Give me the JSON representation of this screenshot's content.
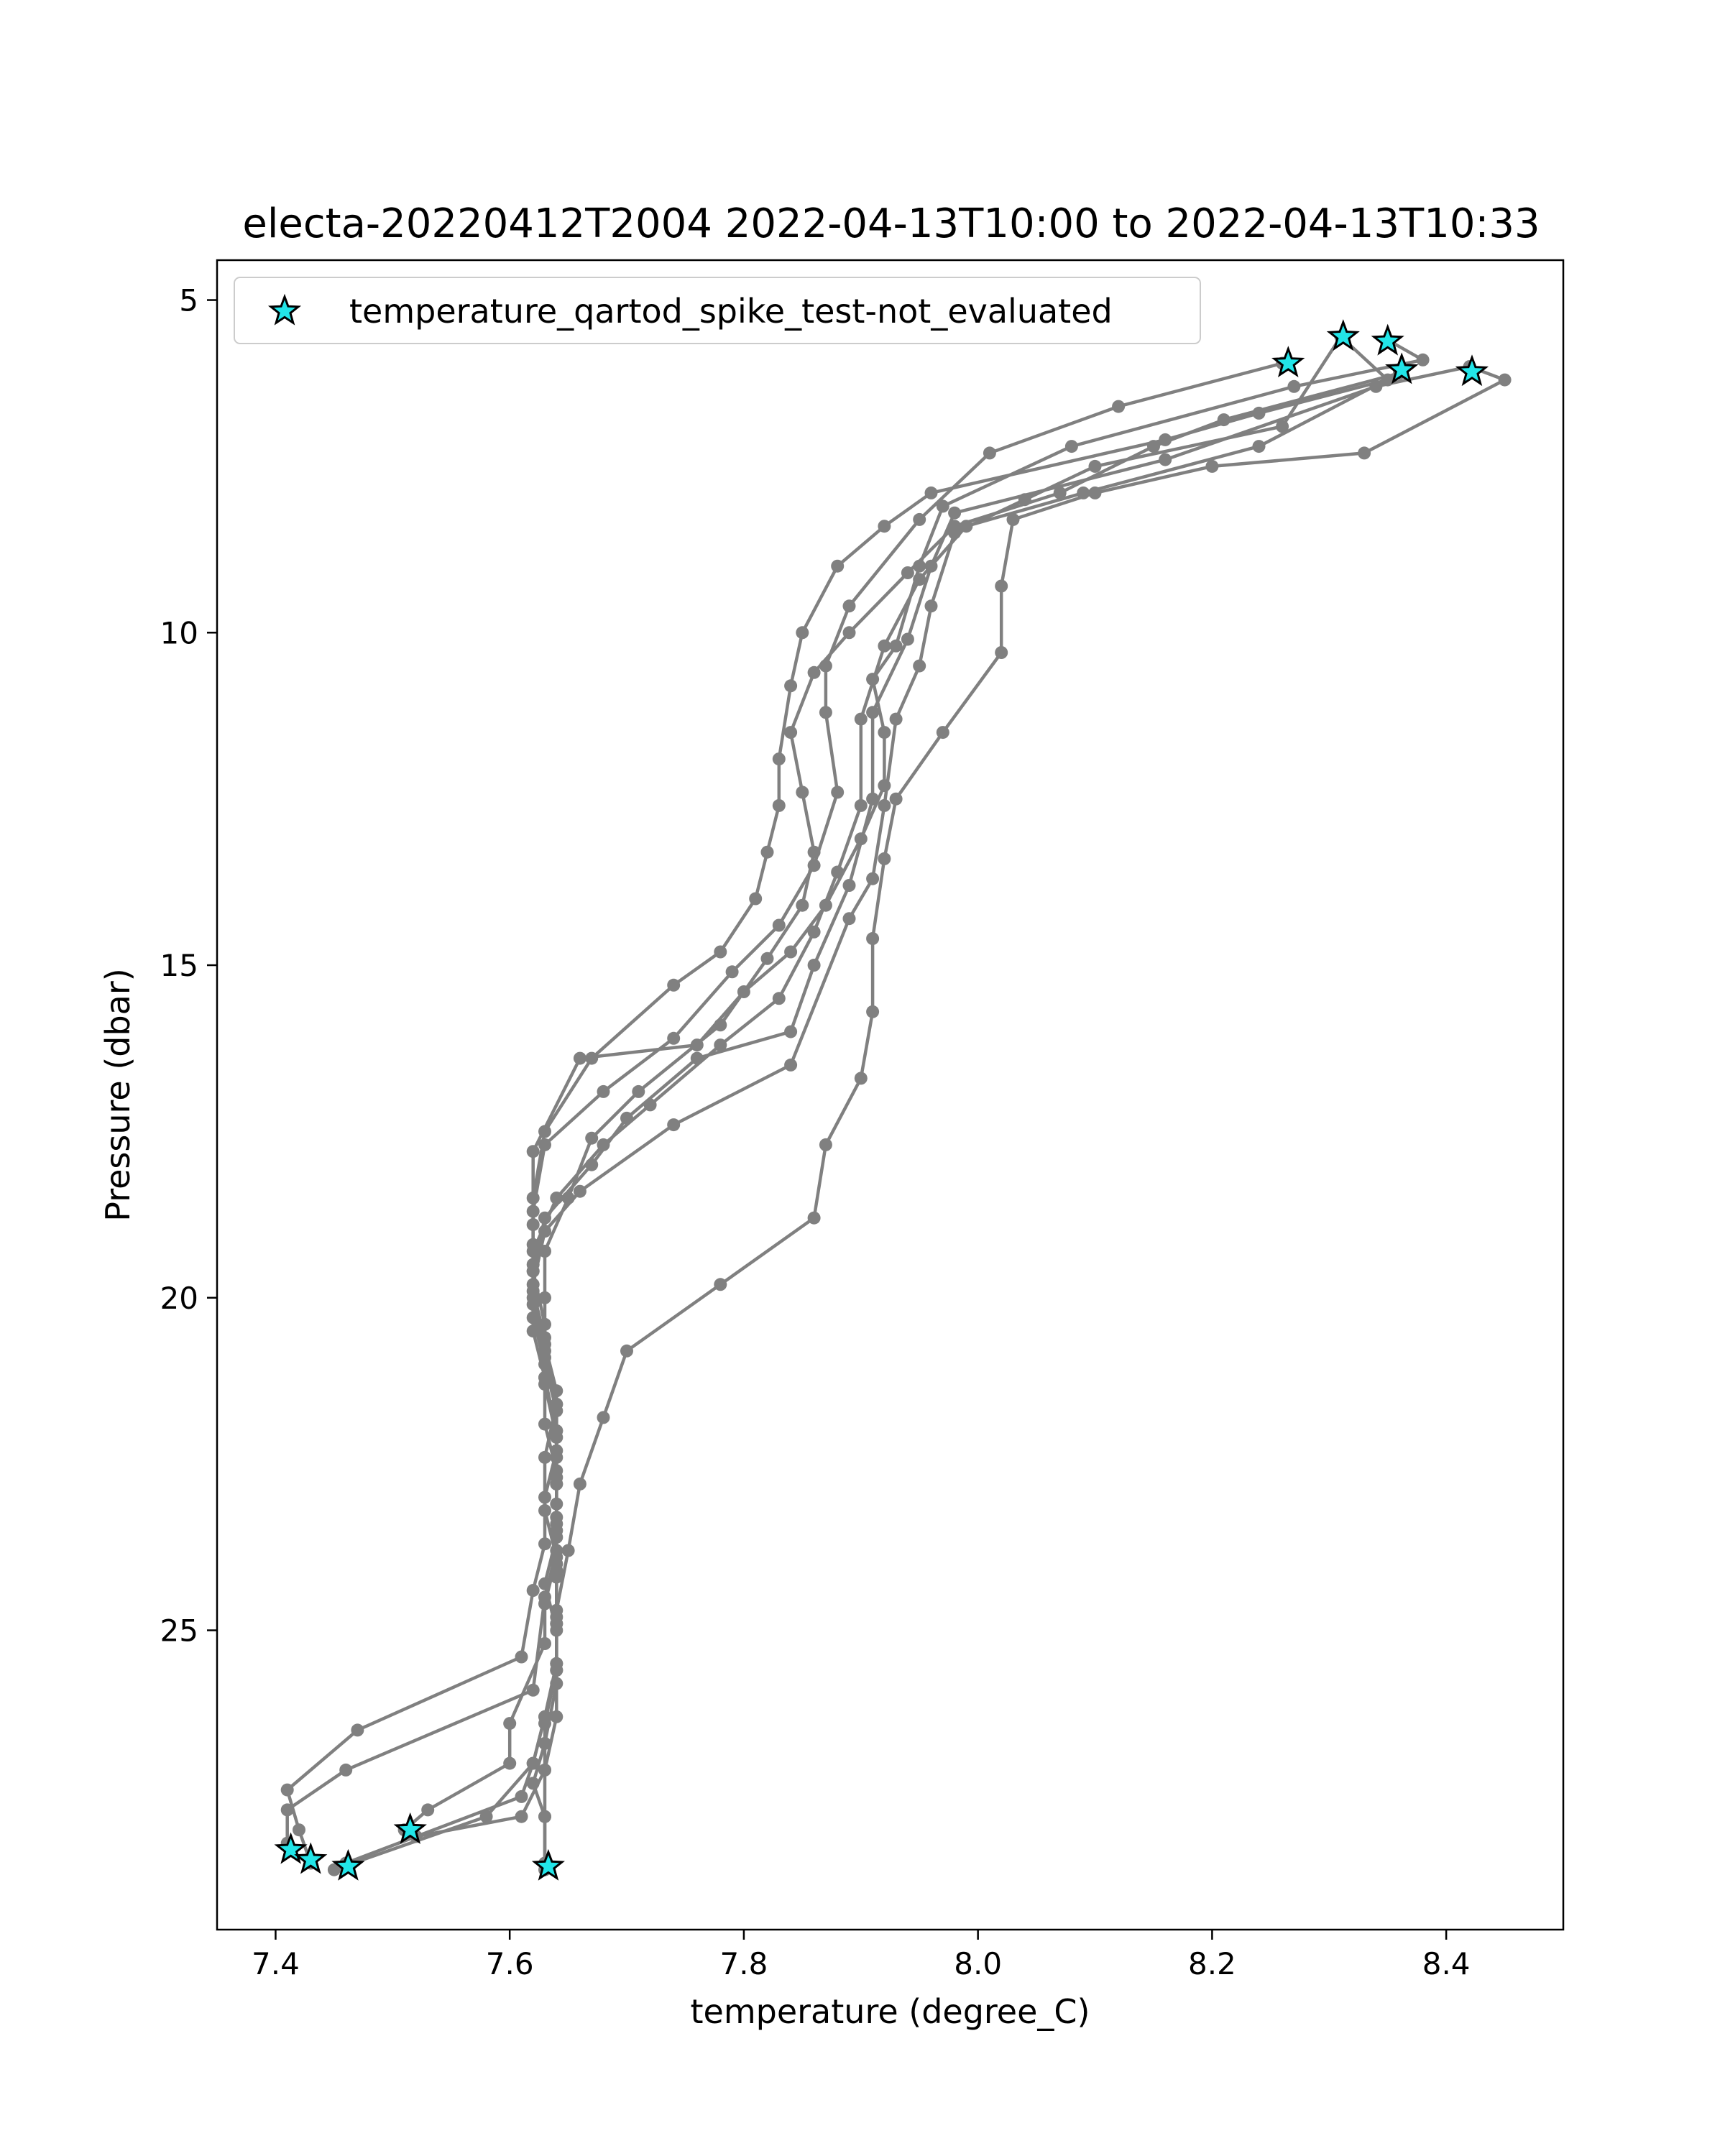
{
  "chart_data": {
    "type": "line",
    "title": "electa-20220412T2004 2022-04-13T10:00 to 2022-04-13T10:33",
    "xlabel": "temperature (degree_C)",
    "ylabel": "Pressure (dbar)",
    "xlim": [
      7.35,
      8.5
    ],
    "ylim": [
      29.5,
      4.4
    ],
    "y_inverted": true,
    "grid": false,
    "legend_position": "upper-left",
    "xticks": [
      7.4,
      7.6,
      7.8,
      8.0,
      8.2,
      8.4
    ],
    "xtick_labels": [
      "7.4",
      "7.6",
      "7.8",
      "8.0",
      "8.2",
      "8.4"
    ],
    "yticks": [
      5,
      10,
      15,
      20,
      25
    ],
    "ytick_labels": [
      "5",
      "10",
      "15",
      "20",
      "25"
    ],
    "line_color": "#808080",
    "marker_color": "#22e5e8",
    "legend": [
      {
        "label": "temperature_qartod_spike_test-not_evaluated",
        "marker": "star",
        "color": "#22e5e8"
      }
    ],
    "series": [
      {
        "values": [
          [
            8.31,
            5.55
          ],
          [
            8.35,
            6.2
          ],
          [
            8.24,
            6.7
          ],
          [
            8.16,
            7.1
          ],
          [
            7.96,
            7.9
          ],
          [
            7.92,
            8.4
          ],
          [
            7.88,
            9.0
          ],
          [
            7.85,
            10.0
          ],
          [
            7.84,
            10.8
          ],
          [
            7.83,
            11.9
          ],
          [
            7.83,
            12.6
          ],
          [
            7.82,
            13.3
          ],
          [
            7.81,
            14.0
          ],
          [
            7.78,
            14.8
          ],
          [
            7.74,
            15.3
          ],
          [
            7.67,
            16.4
          ],
          [
            7.63,
            17.5
          ],
          [
            7.62,
            18.5
          ],
          [
            7.62,
            19.2
          ],
          [
            7.62,
            20.0
          ],
          [
            7.63,
            20.8
          ],
          [
            7.64,
            21.6
          ],
          [
            7.64,
            22.3
          ],
          [
            7.63,
            23.0
          ],
          [
            7.63,
            23.7
          ],
          [
            7.62,
            24.4
          ],
          [
            7.61,
            25.4
          ],
          [
            7.47,
            26.5
          ],
          [
            7.41,
            27.4
          ],
          [
            7.42,
            28.0
          ],
          [
            7.43,
            28.5
          ]
        ]
      },
      {
        "values": [
          [
            8.35,
            5.6
          ],
          [
            8.38,
            5.9
          ],
          [
            8.27,
            6.3
          ],
          [
            8.08,
            7.2
          ],
          [
            7.97,
            8.1
          ],
          [
            7.95,
            9.0
          ],
          [
            7.93,
            10.2
          ],
          [
            7.91,
            10.7
          ],
          [
            7.92,
            11.5
          ],
          [
            7.92,
            12.3
          ],
          [
            7.9,
            13.1
          ],
          [
            7.87,
            14.1
          ],
          [
            7.84,
            14.8
          ],
          [
            7.8,
            15.4
          ],
          [
            7.76,
            16.2
          ],
          [
            7.66,
            16.4
          ],
          [
            7.62,
            17.8
          ],
          [
            7.62,
            18.9
          ],
          [
            7.62,
            19.6
          ],
          [
            7.62,
            20.3
          ],
          [
            7.63,
            21.0
          ],
          [
            7.64,
            21.7
          ],
          [
            7.64,
            22.4
          ],
          [
            7.64,
            23.1
          ],
          [
            7.64,
            23.8
          ],
          [
            7.63,
            24.5
          ],
          [
            7.62,
            25.9
          ],
          [
            7.46,
            27.1
          ],
          [
            7.41,
            27.7
          ],
          [
            7.41,
            28.2
          ]
        ]
      },
      {
        "values": [
          [
            8.26,
            5.95
          ],
          [
            8.12,
            6.6
          ],
          [
            8.01,
            7.3
          ],
          [
            7.95,
            8.3
          ],
          [
            7.89,
            9.6
          ],
          [
            7.87,
            10.5
          ],
          [
            7.87,
            11.2
          ],
          [
            7.88,
            12.4
          ],
          [
            7.86,
            13.5
          ],
          [
            7.83,
            14.4
          ],
          [
            7.79,
            15.1
          ],
          [
            7.74,
            16.1
          ],
          [
            7.68,
            16.9
          ],
          [
            7.63,
            17.7
          ],
          [
            7.62,
            18.7
          ],
          [
            7.62,
            19.5
          ],
          [
            7.62,
            20.1
          ],
          [
            7.63,
            20.9
          ],
          [
            7.64,
            21.6
          ],
          [
            7.63,
            22.4
          ],
          [
            7.63,
            23.2
          ],
          [
            7.64,
            23.9
          ],
          [
            7.63,
            24.6
          ],
          [
            7.63,
            25.2
          ],
          [
            7.6,
            26.4
          ],
          [
            7.6,
            27.0
          ],
          [
            7.53,
            27.7
          ],
          [
            7.51,
            28.0
          ]
        ]
      },
      {
        "values": [
          [
            8.36,
            6.1
          ],
          [
            8.21,
            6.8
          ],
          [
            8.15,
            7.2
          ],
          [
            8.07,
            7.9
          ],
          [
            7.98,
            8.4
          ],
          [
            7.94,
            9.1
          ],
          [
            7.89,
            10.0
          ],
          [
            7.86,
            10.6
          ],
          [
            7.84,
            11.5
          ],
          [
            7.85,
            12.4
          ],
          [
            7.86,
            13.3
          ],
          [
            7.85,
            14.1
          ],
          [
            7.82,
            14.9
          ],
          [
            7.78,
            15.9
          ],
          [
            7.71,
            16.9
          ],
          [
            7.67,
            17.6
          ],
          [
            7.65,
            18.5
          ],
          [
            7.63,
            19.3
          ],
          [
            7.63,
            20.0
          ],
          [
            7.63,
            20.7
          ],
          [
            7.64,
            21.4
          ],
          [
            7.64,
            22.0
          ],
          [
            7.64,
            22.8
          ],
          [
            7.64,
            23.5
          ],
          [
            7.64,
            24.2
          ],
          [
            7.64,
            24.9
          ],
          [
            7.64,
            25.6
          ],
          [
            7.63,
            26.3
          ],
          [
            7.62,
            27.0
          ],
          [
            7.61,
            27.5
          ],
          [
            7.46,
            28.5
          ]
        ]
      },
      {
        "values": [
          [
            8.36,
            6.1
          ],
          [
            8.24,
            7.2
          ],
          [
            8.09,
            7.9
          ],
          [
            7.99,
            8.4
          ],
          [
            7.95,
            9.2
          ],
          [
            7.92,
            10.2
          ],
          [
            7.9,
            11.3
          ],
          [
            7.9,
            12.6
          ],
          [
            7.88,
            13.6
          ],
          [
            7.86,
            14.5
          ],
          [
            7.83,
            15.5
          ],
          [
            7.78,
            16.2
          ],
          [
            7.72,
            17.1
          ],
          [
            7.68,
            17.7
          ],
          [
            7.64,
            18.5
          ],
          [
            7.62,
            19.3
          ],
          [
            7.62,
            19.9
          ],
          [
            7.63,
            20.6
          ],
          [
            7.63,
            21.3
          ],
          [
            7.64,
            22.1
          ],
          [
            7.64,
            22.8
          ],
          [
            7.64,
            23.6
          ],
          [
            7.63,
            24.3
          ],
          [
            7.64,
            25.0
          ],
          [
            7.64,
            25.8
          ],
          [
            7.63,
            26.7
          ],
          [
            7.62,
            27.3
          ],
          [
            7.63,
            27.8
          ],
          [
            7.63,
            28.5
          ]
        ]
      },
      {
        "values": [
          [
            8.42,
            6.0
          ],
          [
            8.45,
            6.2
          ],
          [
            8.33,
            7.3
          ],
          [
            8.2,
            7.5
          ],
          [
            8.1,
            7.9
          ],
          [
            8.03,
            8.3
          ],
          [
            8.02,
            9.3
          ],
          [
            8.02,
            10.3
          ],
          [
            7.97,
            11.5
          ],
          [
            7.93,
            12.5
          ],
          [
            7.92,
            13.4
          ],
          [
            7.91,
            14.6
          ],
          [
            7.91,
            15.7
          ],
          [
            7.9,
            16.7
          ],
          [
            7.87,
            17.7
          ],
          [
            7.86,
            18.8
          ],
          [
            7.78,
            19.8
          ],
          [
            7.7,
            20.8
          ],
          [
            7.68,
            21.8
          ],
          [
            7.66,
            22.8
          ],
          [
            7.65,
            23.8
          ],
          [
            7.64,
            24.7
          ],
          [
            7.64,
            25.5
          ],
          [
            7.64,
            26.3
          ],
          [
            7.63,
            27.1
          ],
          [
            7.63,
            27.8
          ],
          [
            7.63,
            28.6
          ]
        ]
      },
      {
        "values": [
          [
            8.42,
            6.0
          ],
          [
            8.34,
            6.3
          ],
          [
            8.16,
            7.4
          ],
          [
            7.98,
            8.2
          ],
          [
            7.96,
            9.0
          ],
          [
            7.94,
            10.1
          ],
          [
            7.91,
            11.2
          ],
          [
            7.91,
            12.5
          ],
          [
            7.89,
            13.8
          ],
          [
            7.86,
            15.0
          ],
          [
            7.84,
            16.0
          ],
          [
            7.76,
            16.4
          ],
          [
            7.7,
            17.3
          ],
          [
            7.67,
            18.0
          ],
          [
            7.63,
            18.8
          ],
          [
            7.62,
            19.6
          ],
          [
            7.63,
            20.4
          ],
          [
            7.63,
            21.2
          ],
          [
            7.64,
            22.0
          ],
          [
            7.64,
            22.7
          ],
          [
            7.64,
            23.4
          ],
          [
            7.64,
            24.1
          ],
          [
            7.64,
            24.9
          ],
          [
            7.64,
            25.6
          ],
          [
            7.63,
            26.4
          ],
          [
            7.63,
            27.1
          ],
          [
            7.61,
            27.8
          ],
          [
            7.52,
            28.1
          ]
        ]
      },
      {
        "values": [
          [
            8.31,
            5.55
          ],
          [
            8.26,
            6.9
          ],
          [
            8.1,
            7.5
          ],
          [
            8.04,
            8.0
          ],
          [
            7.98,
            8.5
          ],
          [
            7.96,
            9.6
          ],
          [
            7.95,
            10.5
          ],
          [
            7.93,
            11.3
          ],
          [
            7.92,
            12.6
          ],
          [
            7.91,
            13.7
          ],
          [
            7.89,
            14.3
          ],
          [
            7.84,
            16.5
          ],
          [
            7.74,
            17.4
          ],
          [
            7.66,
            18.4
          ],
          [
            7.63,
            19.0
          ],
          [
            7.62,
            19.8
          ],
          [
            7.62,
            20.5
          ],
          [
            7.63,
            21.2
          ],
          [
            7.63,
            21.9
          ],
          [
            7.64,
            22.6
          ],
          [
            7.64,
            23.3
          ],
          [
            7.64,
            24.0
          ],
          [
            7.64,
            24.8
          ],
          [
            7.64,
            25.5
          ],
          [
            7.63,
            26.3
          ],
          [
            7.62,
            27.0
          ],
          [
            7.58,
            27.8
          ],
          [
            7.45,
            28.6
          ]
        ]
      }
    ],
    "flagged_points": [
      [
        8.265,
        5.95
      ],
      [
        8.312,
        5.55
      ],
      [
        8.35,
        5.62
      ],
      [
        8.362,
        6.05
      ],
      [
        8.422,
        6.08
      ],
      [
        7.413,
        28.3
      ],
      [
        7.43,
        28.45
      ],
      [
        7.462,
        28.55
      ],
      [
        7.515,
        28.0
      ],
      [
        7.633,
        28.55
      ]
    ]
  }
}
